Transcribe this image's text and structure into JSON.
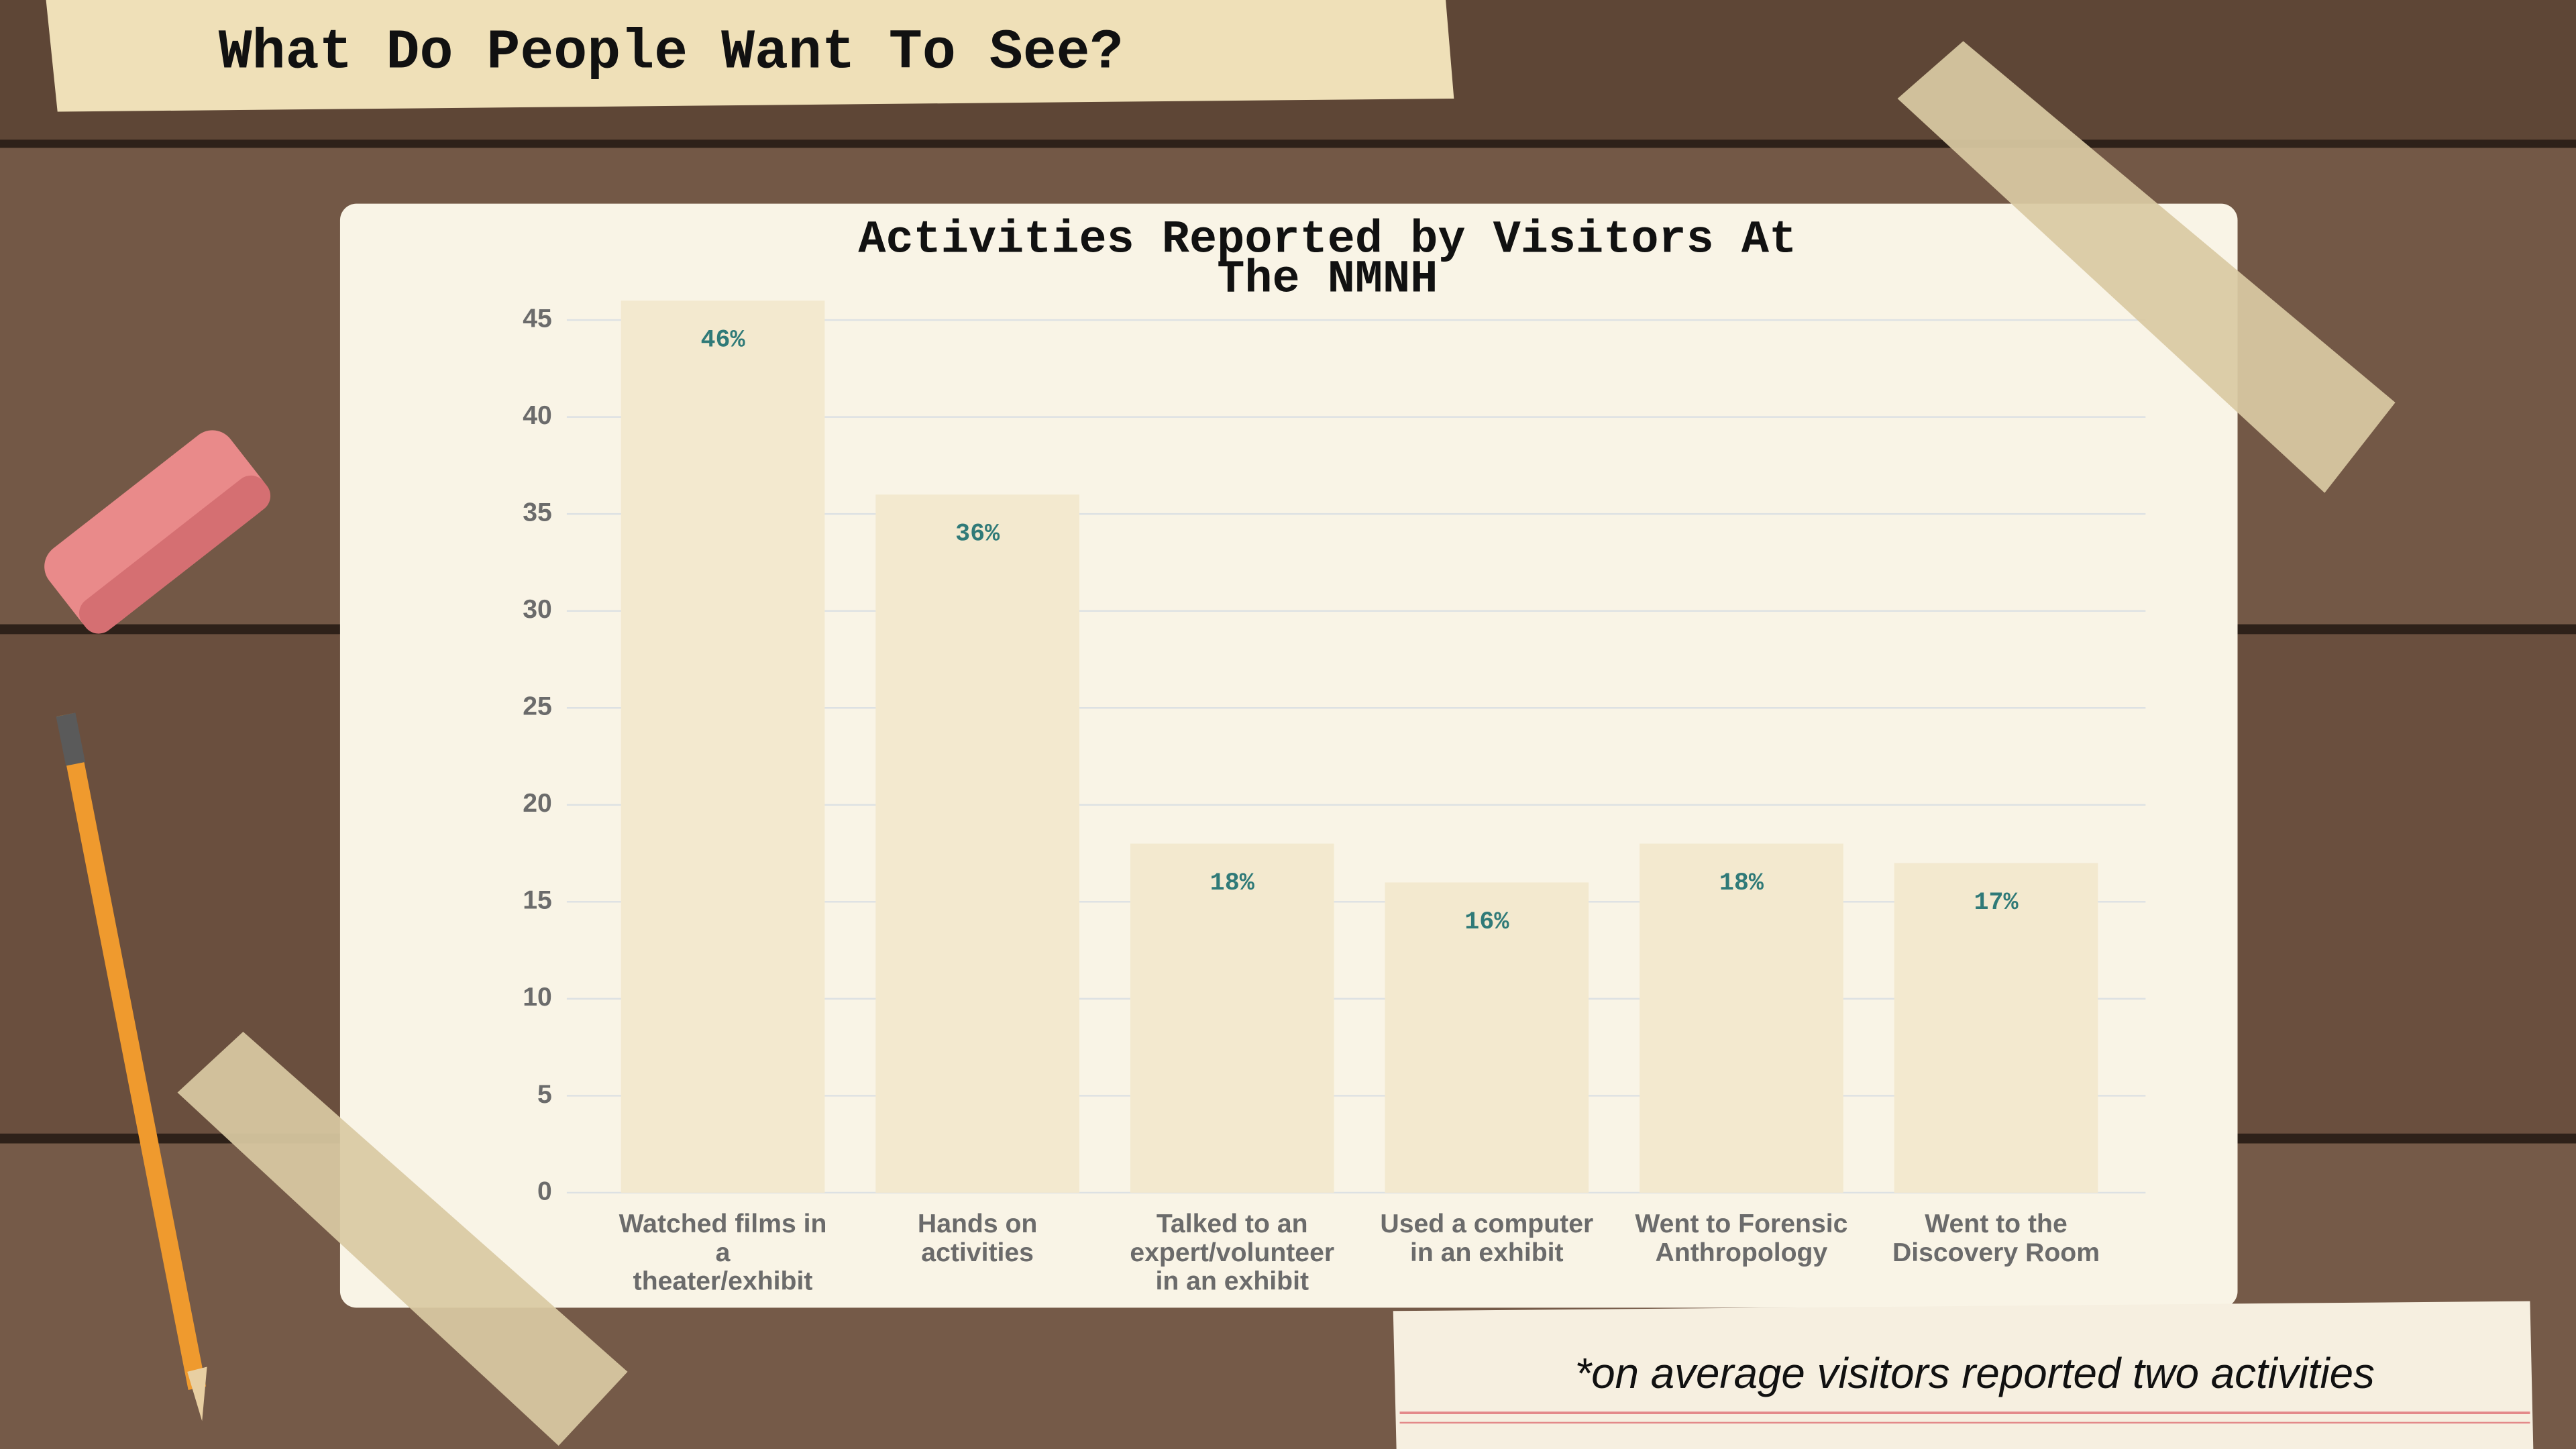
{
  "header": {
    "title": "What Do People Want To See?"
  },
  "chart_data": {
    "type": "bar",
    "title": "Activities Reported by Visitors At The NMNH",
    "categories": [
      "Watched films in a theater/exhibit",
      "Hands on activities",
      "Talked to an expert/volunteer in an exhibit",
      "Used a computer in an exhibit",
      "Went to Forensic Anthropology",
      "Went to the Discovery Room"
    ],
    "values": [
      46,
      36,
      18,
      16,
      18,
      17
    ],
    "value_labels": [
      "46%",
      "36%",
      "18%",
      "16%",
      "18%",
      "17%"
    ],
    "color": "#f3e9cf",
    "ylim": [
      0,
      46
    ],
    "yticks": [
      0,
      5,
      10,
      15,
      20,
      25,
      30,
      35,
      40,
      45
    ],
    "grid": true
  },
  "footnote": "*on average visitors reported two activities"
}
